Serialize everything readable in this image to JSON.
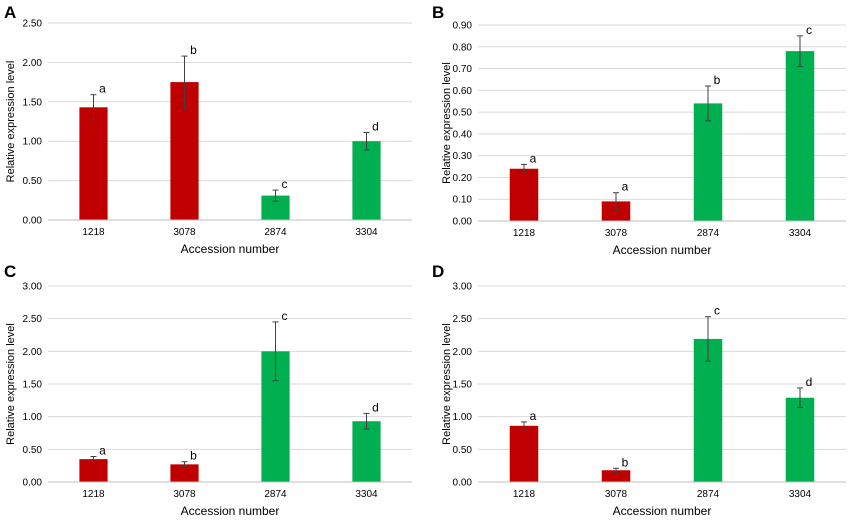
{
  "colors": {
    "red": "#c00000",
    "green": "#00b050",
    "grid": "#d9d9d9",
    "axis": "#bfbfbf",
    "error": "#404040"
  },
  "chart_data": [
    {
      "panel": "A",
      "type": "bar",
      "categories": [
        "1218",
        "3078",
        "2874",
        "3304"
      ],
      "values": [
        1.43,
        1.75,
        0.31,
        1.0
      ],
      "errors": [
        0.16,
        0.33,
        0.07,
        0.11
      ],
      "sig": [
        "a",
        "b",
        "c",
        "d"
      ],
      "bar_colors": [
        "red",
        "red",
        "green",
        "green"
      ],
      "ylim": [
        0,
        2.5
      ],
      "ystep": 0.5,
      "yticks": [
        "0.00",
        "0.50",
        "1.00",
        "1.50",
        "2.00",
        "2.50"
      ],
      "xlabel": "Accession number",
      "ylabel": "Relative expression level"
    },
    {
      "panel": "B",
      "type": "bar",
      "categories": [
        "1218",
        "3078",
        "2874",
        "3304"
      ],
      "values": [
        0.24,
        0.09,
        0.54,
        0.78
      ],
      "errors": [
        0.02,
        0.04,
        0.08,
        0.07
      ],
      "sig": [
        "a",
        "a",
        "b",
        "c"
      ],
      "bar_colors": [
        "red",
        "red",
        "green",
        "green"
      ],
      "ylim": [
        0,
        0.9
      ],
      "ystep": 0.1,
      "yticks": [
        "0.00",
        "0.10",
        "0.20",
        "0.30",
        "0.40",
        "0.50",
        "0.60",
        "0.70",
        "0.80",
        "0.90"
      ],
      "xlabel": "Accession number",
      "ylabel": "Relative expression level"
    },
    {
      "panel": "C",
      "type": "bar",
      "categories": [
        "1218",
        "3078",
        "2874",
        "3304"
      ],
      "values": [
        0.35,
        0.27,
        2.0,
        0.93
      ],
      "errors": [
        0.04,
        0.04,
        0.45,
        0.12
      ],
      "sig": [
        "a",
        "b",
        "c",
        "d"
      ],
      "bar_colors": [
        "red",
        "red",
        "green",
        "green"
      ],
      "ylim": [
        0,
        3.0
      ],
      "ystep": 0.5,
      "yticks": [
        "0.00",
        "0.50",
        "1.00",
        "1.50",
        "2.00",
        "2.50",
        "3.00"
      ],
      "xlabel": "Accession number",
      "ylabel": "Relative expression level"
    },
    {
      "panel": "D",
      "type": "bar",
      "categories": [
        "1218",
        "3078",
        "2874",
        "3304"
      ],
      "values": [
        0.86,
        0.18,
        2.19,
        1.29
      ],
      "errors": [
        0.06,
        0.03,
        0.34,
        0.15
      ],
      "sig": [
        "a",
        "b",
        "c",
        "d"
      ],
      "bar_colors": [
        "red",
        "red",
        "green",
        "green"
      ],
      "ylim": [
        0,
        3.0
      ],
      "ystep": 0.5,
      "yticks": [
        "0.00",
        "0.50",
        "1.00",
        "1.50",
        "2.00",
        "2.50",
        "3.00"
      ],
      "xlabel": "Accession number",
      "ylabel": "Relative expression level"
    }
  ]
}
